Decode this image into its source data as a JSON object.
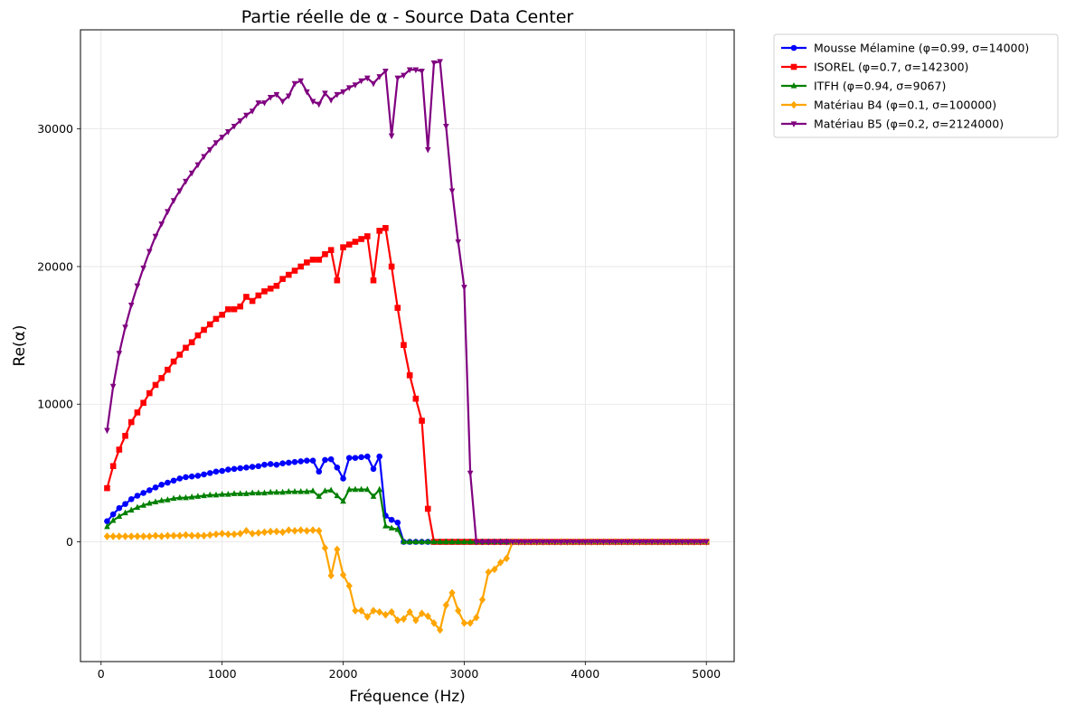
{
  "chart_data": {
    "type": "line",
    "title": "Partie réelle de α - Source Data Center",
    "xlabel": "Fréquence (Hz)",
    "ylabel": "Re(α)",
    "xlim": [
      -170,
      5230
    ],
    "ylim": [
      -8700,
      37200
    ],
    "xticks": [
      0,
      1000,
      2000,
      3000,
      4000,
      5000
    ],
    "yticks": [
      0,
      10000,
      20000,
      30000
    ],
    "grid": true,
    "legend_position": "outside-top-right",
    "x": {
      "start": 50,
      "step": 50,
      "count": 100
    },
    "series": [
      {
        "name": "Mousse Mélamine (φ=0.99, σ=14000)",
        "color": "#0000ff",
        "marker": "circle",
        "values": [
          1500,
          2000,
          2450,
          2750,
          3100,
          3350,
          3550,
          3750,
          3950,
          4150,
          4300,
          4450,
          4600,
          4700,
          4750,
          4800,
          4900,
          5000,
          5100,
          5150,
          5250,
          5300,
          5350,
          5400,
          5450,
          5500,
          5600,
          5650,
          5600,
          5700,
          5750,
          5800,
          5850,
          5900,
          5900,
          5100,
          5950,
          6000,
          5400,
          4600,
          6100,
          6100,
          6150,
          6200,
          5300,
          6200,
          1900,
          1600,
          1400,
          0,
          0,
          0,
          0,
          0,
          0,
          0,
          0,
          0,
          0,
          0,
          0,
          0,
          0,
          0,
          0,
          0,
          0,
          0,
          0,
          0,
          0,
          0,
          0,
          0,
          0,
          0,
          0,
          0,
          0,
          0,
          0,
          0,
          0,
          0,
          0,
          0,
          0,
          0,
          0,
          0,
          0,
          0,
          0,
          0,
          0,
          0,
          0,
          0,
          0,
          0
        ]
      },
      {
        "name": "ISOREL (φ=0.7, σ=142300)",
        "color": "#ff0000",
        "marker": "square",
        "values": [
          3900,
          5500,
          6700,
          7700,
          8700,
          9400,
          10100,
          10800,
          11400,
          11900,
          12500,
          13100,
          13600,
          14100,
          14500,
          15000,
          15400,
          15800,
          16200,
          16500,
          16900,
          16900,
          17100,
          17800,
          17500,
          17900,
          18200,
          18400,
          18600,
          19100,
          19400,
          19700,
          20000,
          20300,
          20500,
          20500,
          20900,
          21200,
          19000,
          21400,
          21600,
          21800,
          22000,
          22200,
          19000,
          22600,
          22800,
          20000,
          17000,
          14300,
          12100,
          10400,
          8800,
          2400,
          0,
          0,
          0,
          0,
          0,
          0,
          0,
          0,
          0,
          0,
          0,
          0,
          0,
          0,
          0,
          0,
          0,
          0,
          0,
          0,
          0,
          0,
          0,
          0,
          0,
          0,
          0,
          0,
          0,
          0,
          0,
          0,
          0,
          0,
          0,
          0,
          0,
          0,
          0,
          0,
          0,
          0,
          0,
          0,
          0,
          0
        ]
      },
      {
        "name": "ITFH (φ=0.94, σ=9067)",
        "color": "#008000",
        "marker": "triangle-up",
        "values": [
          1100,
          1550,
          1850,
          2100,
          2300,
          2500,
          2650,
          2800,
          2900,
          3000,
          3050,
          3150,
          3200,
          3200,
          3250,
          3300,
          3350,
          3400,
          3400,
          3450,
          3450,
          3500,
          3500,
          3500,
          3550,
          3550,
          3550,
          3600,
          3600,
          3600,
          3650,
          3650,
          3650,
          3650,
          3700,
          3300,
          3700,
          3750,
          3350,
          2950,
          3800,
          3800,
          3800,
          3800,
          3300,
          3800,
          1150,
          1000,
          900,
          0,
          0,
          0,
          0,
          0,
          0,
          0,
          0,
          0,
          0,
          0,
          0,
          0,
          0,
          0,
          0,
          0,
          0,
          0,
          0,
          0,
          0,
          0,
          0,
          0,
          0,
          0,
          0,
          0,
          0,
          0,
          0,
          0,
          0,
          0,
          0,
          0,
          0,
          0,
          0,
          0,
          0,
          0,
          0,
          0,
          0,
          0,
          0,
          0,
          0,
          0
        ]
      },
      {
        "name": "Matériau B4 (φ=0.1, σ=100000)",
        "color": "#ffa500",
        "marker": "diamond",
        "values": [
          400,
          400,
          400,
          400,
          400,
          400,
          400,
          400,
          450,
          400,
          450,
          450,
          450,
          500,
          450,
          450,
          450,
          500,
          550,
          600,
          550,
          550,
          600,
          800,
          600,
          650,
          700,
          750,
          750,
          700,
          850,
          800,
          850,
          800,
          850,
          800,
          -450,
          -2450,
          -550,
          -2400,
          -3200,
          -5000,
          -5000,
          -5450,
          -5000,
          -5100,
          -5300,
          -5100,
          -5700,
          -5600,
          -5100,
          -5700,
          -5200,
          -5400,
          -5900,
          -6400,
          -4600,
          -3700,
          -5000,
          -5900,
          -5900,
          -5500,
          -4200,
          -2200,
          -2000,
          -1500,
          -1200,
          0,
          0,
          0,
          0,
          0,
          0,
          0,
          0,
          0,
          0,
          0,
          0,
          0,
          0,
          0,
          0,
          0,
          0,
          0,
          0,
          0,
          0,
          0,
          0,
          0,
          0,
          0,
          0,
          0,
          0,
          0,
          0,
          0
        ]
      },
      {
        "name": "Matériau B5 (φ=0.2, σ=2124000)",
        "color": "#800080",
        "marker": "triangle-down",
        "values": [
          8100,
          11300,
          13700,
          15600,
          17200,
          18600,
          19900,
          21100,
          22200,
          23100,
          24000,
          24800,
          25500,
          26200,
          26800,
          27400,
          28000,
          28500,
          29000,
          29400,
          29800,
          30200,
          30600,
          31000,
          31300,
          31900,
          31900,
          32300,
          32500,
          32000,
          32400,
          33300,
          33500,
          32700,
          32000,
          31800,
          32600,
          32100,
          32500,
          32700,
          33000,
          33200,
          33500,
          33700,
          33300,
          33800,
          34200,
          29500,
          33700,
          33900,
          34300,
          34300,
          34200,
          28500,
          34800,
          34900,
          30200,
          25500,
          21800,
          18500,
          5000,
          0,
          0,
          0,
          0,
          0,
          0,
          0,
          0,
          0,
          0,
          0,
          0,
          0,
          0,
          0,
          0,
          0,
          0,
          0,
          0,
          0,
          0,
          0,
          0,
          0,
          0,
          0,
          0,
          0,
          0,
          0,
          0,
          0,
          0,
          0,
          0,
          0,
          0,
          0
        ]
      }
    ]
  }
}
